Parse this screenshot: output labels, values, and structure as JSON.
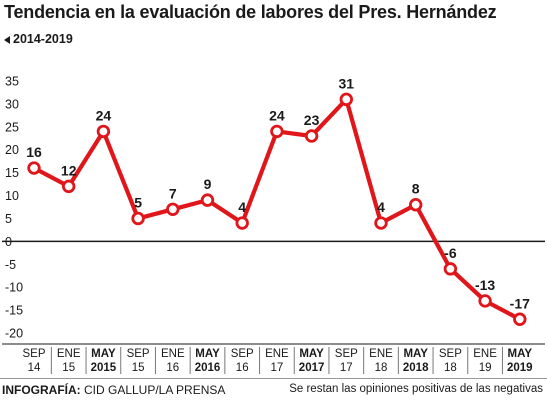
{
  "header": {
    "title": "Tendencia en la evaluación de labores del Pres. Hernández",
    "subtitle": "2014-2019"
  },
  "footer": {
    "source_label": "INFOGRAFÍA:",
    "source_text": " CID GALLUP/LA PRENSA",
    "note": "Se restan las opiniones positivas de las negativas"
  },
  "chart_data": {
    "type": "line",
    "title": "Tendencia en la evaluación de labores del Pres. Hernández",
    "subtitle": "2014-2019",
    "xlabel": "",
    "ylabel": "",
    "ylim": [
      -20,
      35
    ],
    "yticks": [
      35,
      30,
      25,
      20,
      15,
      10,
      5,
      0,
      -5,
      -10,
      -15,
      -20
    ],
    "grid": false,
    "line_color": "#e0161b",
    "categories": [
      {
        "month": "SEP",
        "year": "14",
        "bold": false
      },
      {
        "month": "ENE",
        "year": "15",
        "bold": false
      },
      {
        "month": "MAY",
        "year": "2015",
        "bold": true
      },
      {
        "month": "SEP",
        "year": "15",
        "bold": false
      },
      {
        "month": "ENE",
        "year": "16",
        "bold": false
      },
      {
        "month": "MAY",
        "year": "2016",
        "bold": true
      },
      {
        "month": "SEP",
        "year": "16",
        "bold": false
      },
      {
        "month": "ENE",
        "year": "17",
        "bold": false
      },
      {
        "month": "MAY",
        "year": "2017",
        "bold": true
      },
      {
        "month": "SEP",
        "year": "17",
        "bold": false
      },
      {
        "month": "ENE",
        "year": "18",
        "bold": false
      },
      {
        "month": "MAY",
        "year": "2018",
        "bold": true
      },
      {
        "month": "SEP",
        "year": "18",
        "bold": false
      },
      {
        "month": "ENE",
        "year": "19",
        "bold": false
      },
      {
        "month": "MAY",
        "year": "2019",
        "bold": true
      }
    ],
    "values": [
      16,
      12,
      24,
      5,
      7,
      9,
      4,
      24,
      23,
      31,
      4,
      8,
      -6,
      -13,
      -17
    ],
    "data_labels": [
      "16",
      "12",
      "24",
      "5",
      "7",
      "9",
      "4",
      "24",
      "23",
      "31",
      "4",
      "8",
      "-6",
      "-13",
      "-17"
    ]
  }
}
